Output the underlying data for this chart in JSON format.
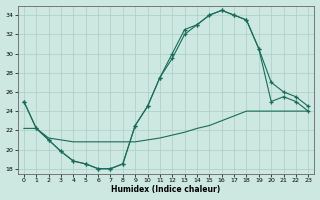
{
  "xlabel": "Humidex (Indice chaleur)",
  "bg_color": "#cce8e0",
  "grid_color": "#aaccc4",
  "line_color": "#1a6b5a",
  "xlim": [
    -0.5,
    23.5
  ],
  "ylim": [
    17.5,
    35
  ],
  "yticks": [
    18,
    20,
    22,
    24,
    26,
    28,
    30,
    32,
    34
  ],
  "xticks": [
    0,
    1,
    2,
    3,
    4,
    5,
    6,
    7,
    8,
    9,
    10,
    11,
    12,
    13,
    14,
    15,
    16,
    17,
    18,
    19,
    20,
    21,
    22,
    23
  ],
  "curve1_x": [
    0,
    1,
    2,
    3,
    4,
    5,
    6,
    7,
    8,
    9,
    10,
    11,
    12,
    13,
    14,
    15,
    16,
    17,
    18,
    19,
    20,
    21,
    22,
    23
  ],
  "curve1_y": [
    25.0,
    22.2,
    21.0,
    19.8,
    18.8,
    18.5,
    18.0,
    18.0,
    18.5,
    22.5,
    24.5,
    27.5,
    30.0,
    32.5,
    33.0,
    34.0,
    34.5,
    34.0,
    33.5,
    30.5,
    25.0,
    25.5,
    25.0,
    24.0
  ],
  "curve2_x": [
    0,
    1,
    2,
    3,
    4,
    5,
    6,
    7,
    8,
    9,
    10,
    11,
    12,
    13,
    14,
    15,
    16,
    17,
    18,
    19,
    20,
    21,
    22,
    23
  ],
  "curve2_y": [
    22.2,
    22.2,
    21.2,
    21.0,
    20.8,
    20.8,
    20.8,
    20.8,
    20.8,
    20.8,
    21.0,
    21.2,
    21.5,
    21.8,
    22.2,
    22.5,
    23.0,
    23.5,
    24.0,
    24.0,
    24.0,
    24.0,
    24.0,
    24.0
  ],
  "curve3_x": [
    0,
    1,
    2,
    3,
    4,
    5,
    6,
    7,
    8,
    9,
    10,
    11,
    12,
    13,
    14,
    15,
    16,
    17,
    18,
    19,
    20,
    21,
    22,
    23
  ],
  "curve3_y": [
    25.0,
    22.2,
    21.0,
    19.8,
    18.8,
    18.5,
    18.0,
    18.0,
    18.5,
    22.5,
    24.5,
    27.5,
    29.5,
    32.0,
    33.0,
    34.0,
    34.5,
    34.0,
    33.5,
    30.5,
    27.0,
    26.0,
    25.5,
    24.5
  ]
}
